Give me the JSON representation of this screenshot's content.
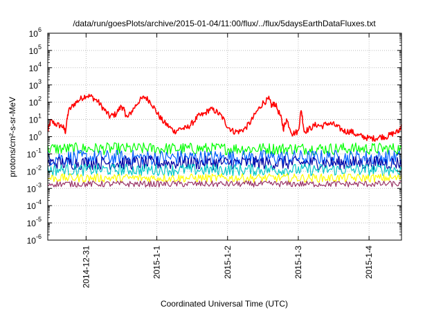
{
  "chart_data": {
    "type": "line",
    "title": "/data/run/goesPlots/archive/2015-01-04/11:00/flux/../flux/5daysEarthDataFluxes.txt",
    "xlabel": "Coordinated Universal Time (UTC)",
    "ylabel": "protons/cm²-s-sr-MeV",
    "yscale": "log",
    "ylim": [
      1e-06,
      1000000.0
    ],
    "y_ticks": [
      {
        "base": "10",
        "exp": "-6"
      },
      {
        "base": "10",
        "exp": "-5"
      },
      {
        "base": "10",
        "exp": "-4"
      },
      {
        "base": "10",
        "exp": "-3"
      },
      {
        "base": "10",
        "exp": "-2"
      },
      {
        "base": "10",
        "exp": "-1"
      },
      {
        "base": "10",
        "exp": "0"
      },
      {
        "base": "10",
        "exp": "1"
      },
      {
        "base": "10",
        "exp": "2"
      },
      {
        "base": "10",
        "exp": "3"
      },
      {
        "base": "10",
        "exp": "4"
      },
      {
        "base": "10",
        "exp": "5"
      },
      {
        "base": "10",
        "exp": "6"
      }
    ],
    "x_range_days": [
      "2014-12-30 11:00",
      "2015-01-04 11:00"
    ],
    "x_ticks": [
      "2014-12-31",
      "2015-1-1",
      "2015-1-2",
      "2015-1-3",
      "2015-1-4"
    ],
    "grid": true,
    "series": [
      {
        "color": "#ff0000",
        "points": [
          [
            "2014-12-30 11:00",
            2
          ],
          [
            "2014-12-30 12:00",
            8
          ],
          [
            "2014-12-30 14:00",
            5
          ],
          [
            "2014-12-30 16:00",
            4
          ],
          [
            "2014-12-30 17:00",
            2
          ],
          [
            "2014-12-30 18:00",
            30
          ],
          [
            "2014-12-30 20:00",
            80
          ],
          [
            "2014-12-30 22:00",
            150
          ],
          [
            "2014-12-31 00:00",
            250
          ],
          [
            "2014-12-31 02:00",
            200
          ],
          [
            "2014-12-31 04:00",
            110
          ],
          [
            "2014-12-31 06:00",
            40
          ],
          [
            "2014-12-31 08:00",
            15
          ],
          [
            "2014-12-31 10:00",
            20
          ],
          [
            "2014-12-31 12:00",
            60
          ],
          [
            "2014-12-31 13:00",
            30
          ],
          [
            "2014-12-31 14:00",
            12
          ],
          [
            "2014-12-31 16:00",
            40
          ],
          [
            "2014-12-31 18:00",
            120
          ],
          [
            "2014-12-31 20:00",
            200
          ],
          [
            "2014-12-31 22:00",
            100
          ],
          [
            "2015-01-01 00:00",
            25
          ],
          [
            "2015-01-01 02:00",
            8
          ],
          [
            "2015-01-01 04:00",
            4
          ],
          [
            "2015-01-01 06:00",
            2
          ],
          [
            "2015-01-01 08:00",
            3
          ],
          [
            "2015-01-01 10:00",
            3
          ],
          [
            "2015-01-01 12:00",
            6
          ],
          [
            "2015-01-01 14:00",
            15
          ],
          [
            "2015-01-01 16:00",
            20
          ],
          [
            "2015-01-01 18:00",
            40
          ],
          [
            "2015-01-01 20:00",
            30
          ],
          [
            "2015-01-01 22:00",
            15
          ],
          [
            "2015-01-02 00:00",
            4
          ],
          [
            "2015-01-02 02:00",
            2
          ],
          [
            "2015-01-02 04:00",
            2
          ],
          [
            "2015-01-02 06:00",
            3
          ],
          [
            "2015-01-02 08:00",
            8
          ],
          [
            "2015-01-02 10:00",
            30
          ],
          [
            "2015-01-02 12:00",
            90
          ],
          [
            "2015-01-02 14:00",
            150
          ],
          [
            "2015-01-02 15:00",
            60
          ],
          [
            "2015-01-02 16:00",
            90
          ],
          [
            "2015-01-02 18:00",
            15
          ],
          [
            "2015-01-02 19:00",
            3
          ],
          [
            "2015-01-02 20:00",
            10
          ],
          [
            "2015-01-02 22:00",
            1.5
          ],
          [
            "2015-01-03 00:00",
            2
          ],
          [
            "2015-01-03 01:00",
            40
          ],
          [
            "2015-01-03 02:00",
            2
          ],
          [
            "2015-01-03 04:00",
            3
          ],
          [
            "2015-01-03 06:00",
            5
          ],
          [
            "2015-01-03 08:00",
            4
          ],
          [
            "2015-01-03 10:00",
            6
          ],
          [
            "2015-01-03 12:00",
            5
          ],
          [
            "2015-01-03 14:00",
            3
          ],
          [
            "2015-01-03 16:00",
            2
          ],
          [
            "2015-01-03 18:00",
            2
          ],
          [
            "2015-01-03 20:00",
            1.2
          ],
          [
            "2015-01-03 22:00",
            1
          ],
          [
            "2015-01-04 00:00",
            0.8
          ],
          [
            "2015-01-04 02:00",
            0.8
          ],
          [
            "2015-01-04 04:00",
            1
          ],
          [
            "2015-01-04 06:00",
            1
          ],
          [
            "2015-01-04 08:00",
            1.5
          ],
          [
            "2015-01-04 10:00",
            2
          ],
          [
            "2015-01-04 11:00",
            5
          ]
        ]
      },
      {
        "color": "#00ff00",
        "level": 0.2
      },
      {
        "color": "#0060ff",
        "level": 0.06
      },
      {
        "color": "#0000a0",
        "level": 0.03
      },
      {
        "color": "#00c8c8",
        "level": 0.012
      },
      {
        "color": "#ffff00",
        "level": 0.004
      },
      {
        "color": "#993366",
        "level": 0.0018
      }
    ]
  }
}
